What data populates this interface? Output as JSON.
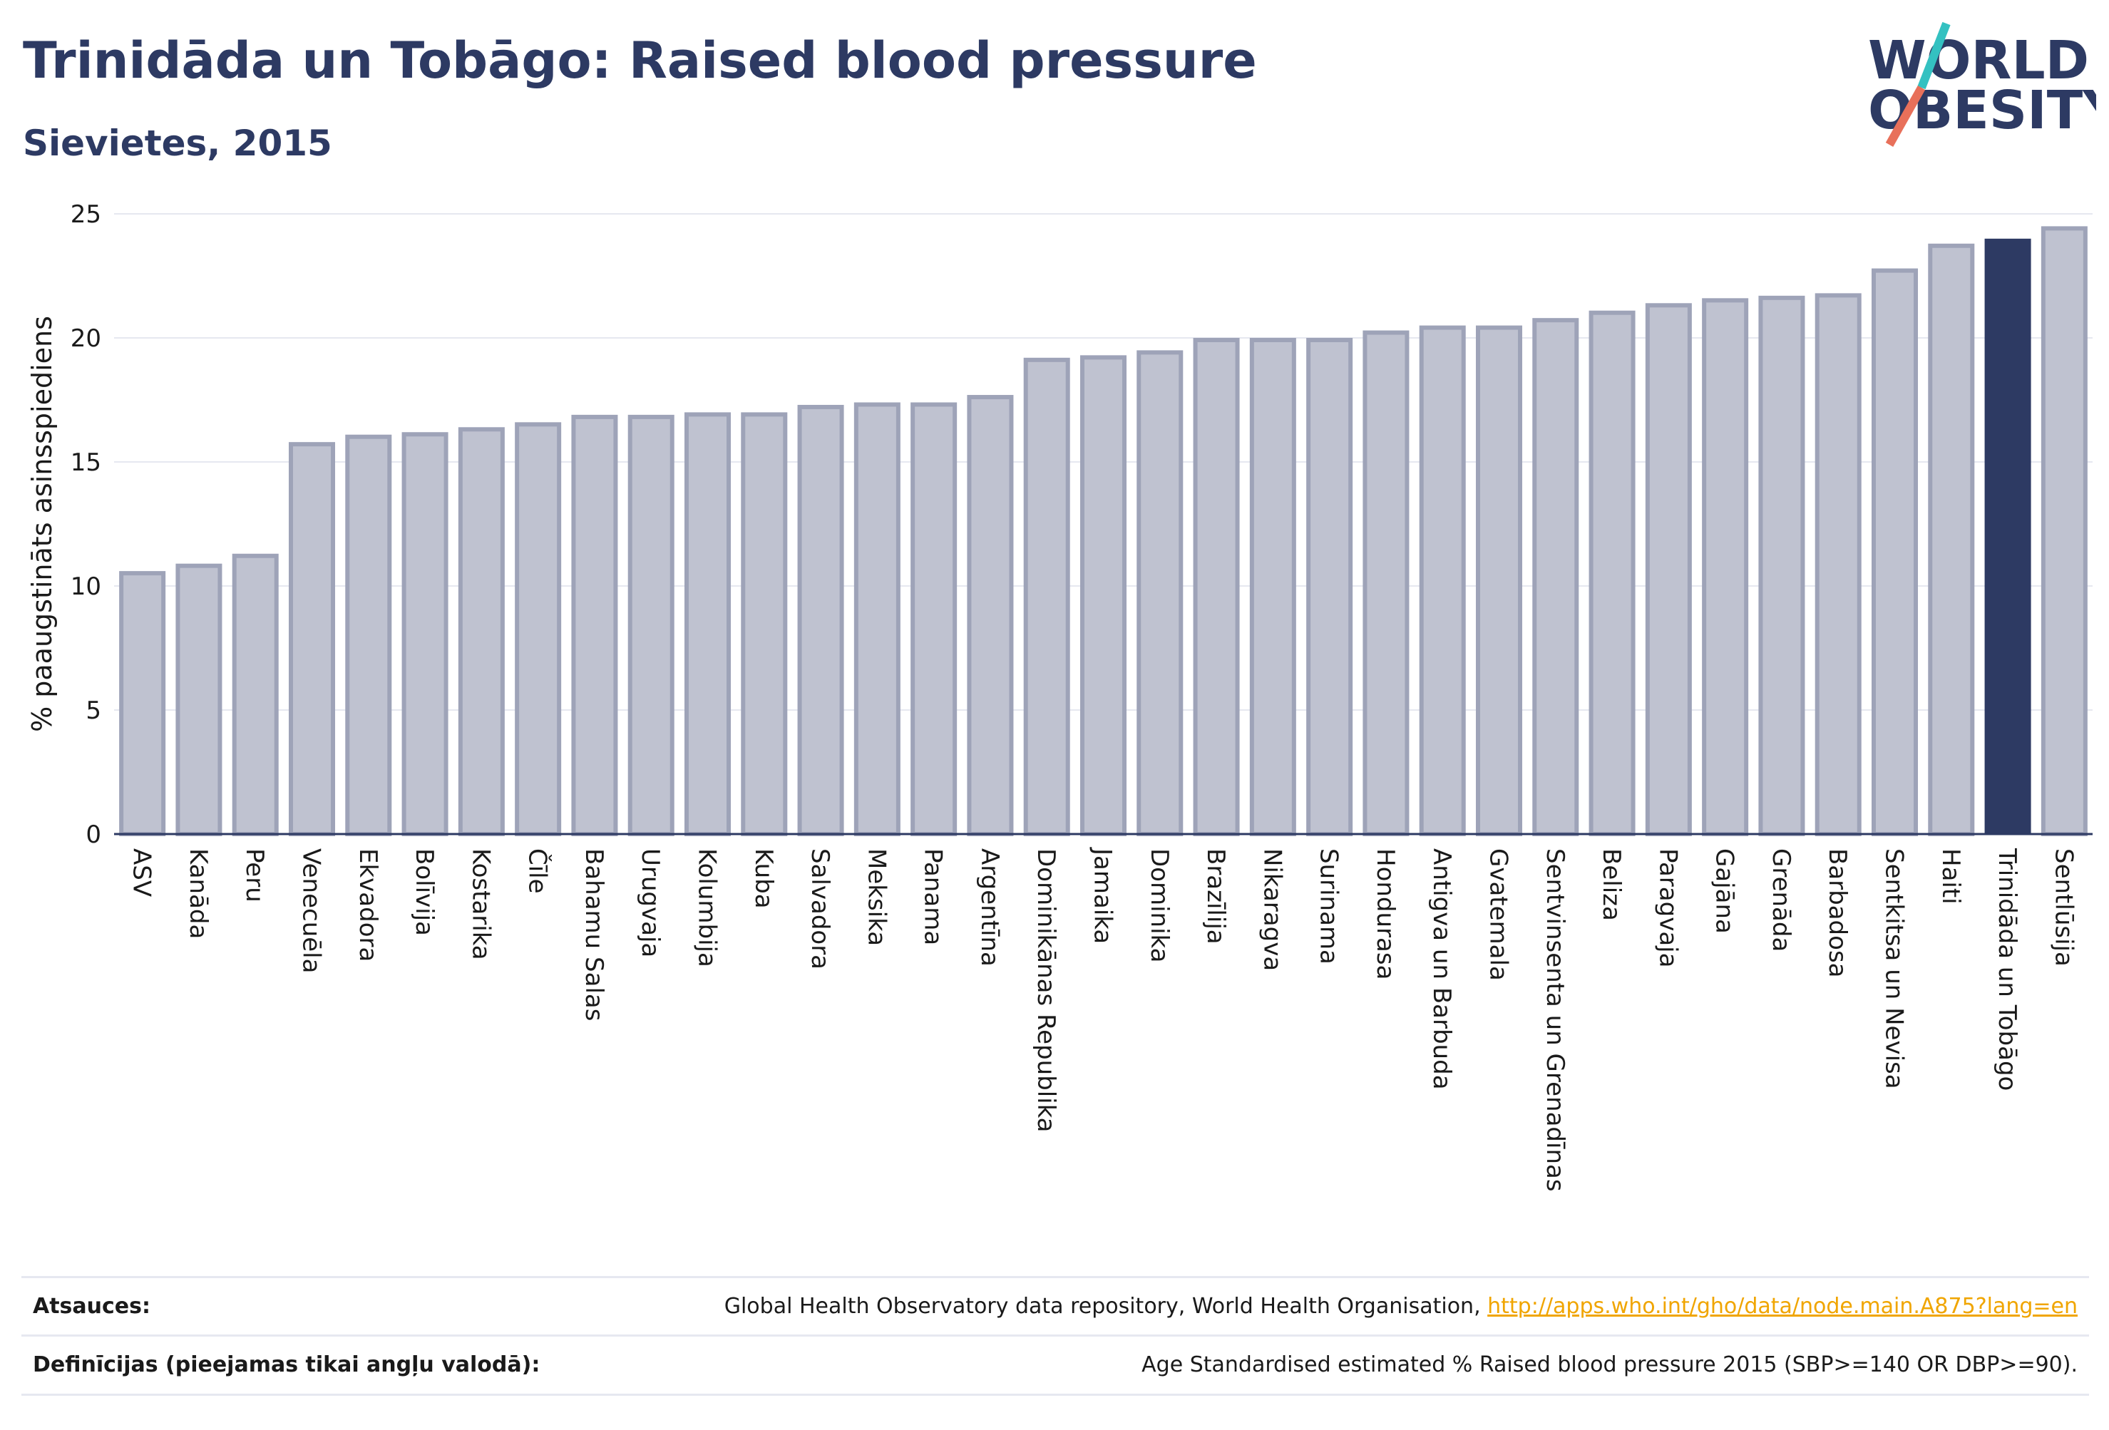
{
  "header": {
    "title": "Trinidāda un Tobāgo: Raised blood pressure",
    "subtitle": "Sievietes, 2015"
  },
  "logo": {
    "line1": "WORLD",
    "line2": "OBESITY",
    "colors": {
      "text": "#2d3a63",
      "slash_top": "#34c1c1",
      "slash_bottom": "#e8705a"
    }
  },
  "chart_data": {
    "type": "bar",
    "ylabel": "% paaugstināts asinsspiediens",
    "ylim": [
      0,
      25
    ],
    "yticks": [
      0,
      5,
      10,
      15,
      20,
      25
    ],
    "grid": true,
    "categories": [
      "ASV",
      "Kanāda",
      "Peru",
      "Venecuēla",
      "Ekvadora",
      "Bolīvija",
      "Kostarika",
      "Čīle",
      "Bahamu Salas",
      "Urugvaja",
      "Kolumbija",
      "Kuba",
      "Salvadora",
      "Meksika",
      "Panama",
      "Argentīna",
      "Dominikānas Republika",
      "Jamaika",
      "Dominika",
      "Brazīlija",
      "Nikaragva",
      "Surinama",
      "Hondurasa",
      "Antigva un Barbuda",
      "Gvatemala",
      "Sentvinsenta un Grenadīnas",
      "Beliza",
      "Paragvaja",
      "Gajāna",
      "Grenāda",
      "Barbadosa",
      "Sentkitsa un Nevisa",
      "Haiti",
      "Trinidāda un Tobāgo",
      "Sentlūsija"
    ],
    "values": [
      10.6,
      10.9,
      11.3,
      15.8,
      16.1,
      16.2,
      16.4,
      16.6,
      16.9,
      16.9,
      17.0,
      17.0,
      17.3,
      17.4,
      17.4,
      17.7,
      19.2,
      19.3,
      19.5,
      20.0,
      20.0,
      20.0,
      20.3,
      20.5,
      20.5,
      20.8,
      21.1,
      21.4,
      21.6,
      21.7,
      21.8,
      22.8,
      23.8,
      24.0,
      24.5
    ],
    "highlight": "Trinidāda un Tobāgo",
    "colors": {
      "bar": "#bfc2d0",
      "bar_border": "#9ea3b8",
      "highlight": "#2d3a63",
      "grid": "#e6e8f0",
      "axis": "#2d3a63"
    }
  },
  "footer": {
    "sources_label": "Atsauces:",
    "sources_text": "Global Health Observatory data repository, World Health Organisation, ",
    "sources_link": "http://apps.who.int/gho/data/node.main.A875?lang=en",
    "definitions_label": "Definīcijas (pieejamas tikai angļu valodā):",
    "definitions_text": "Age Standardised estimated % Raised blood pressure 2015 (SBP>=140 OR DBP>=90)."
  }
}
